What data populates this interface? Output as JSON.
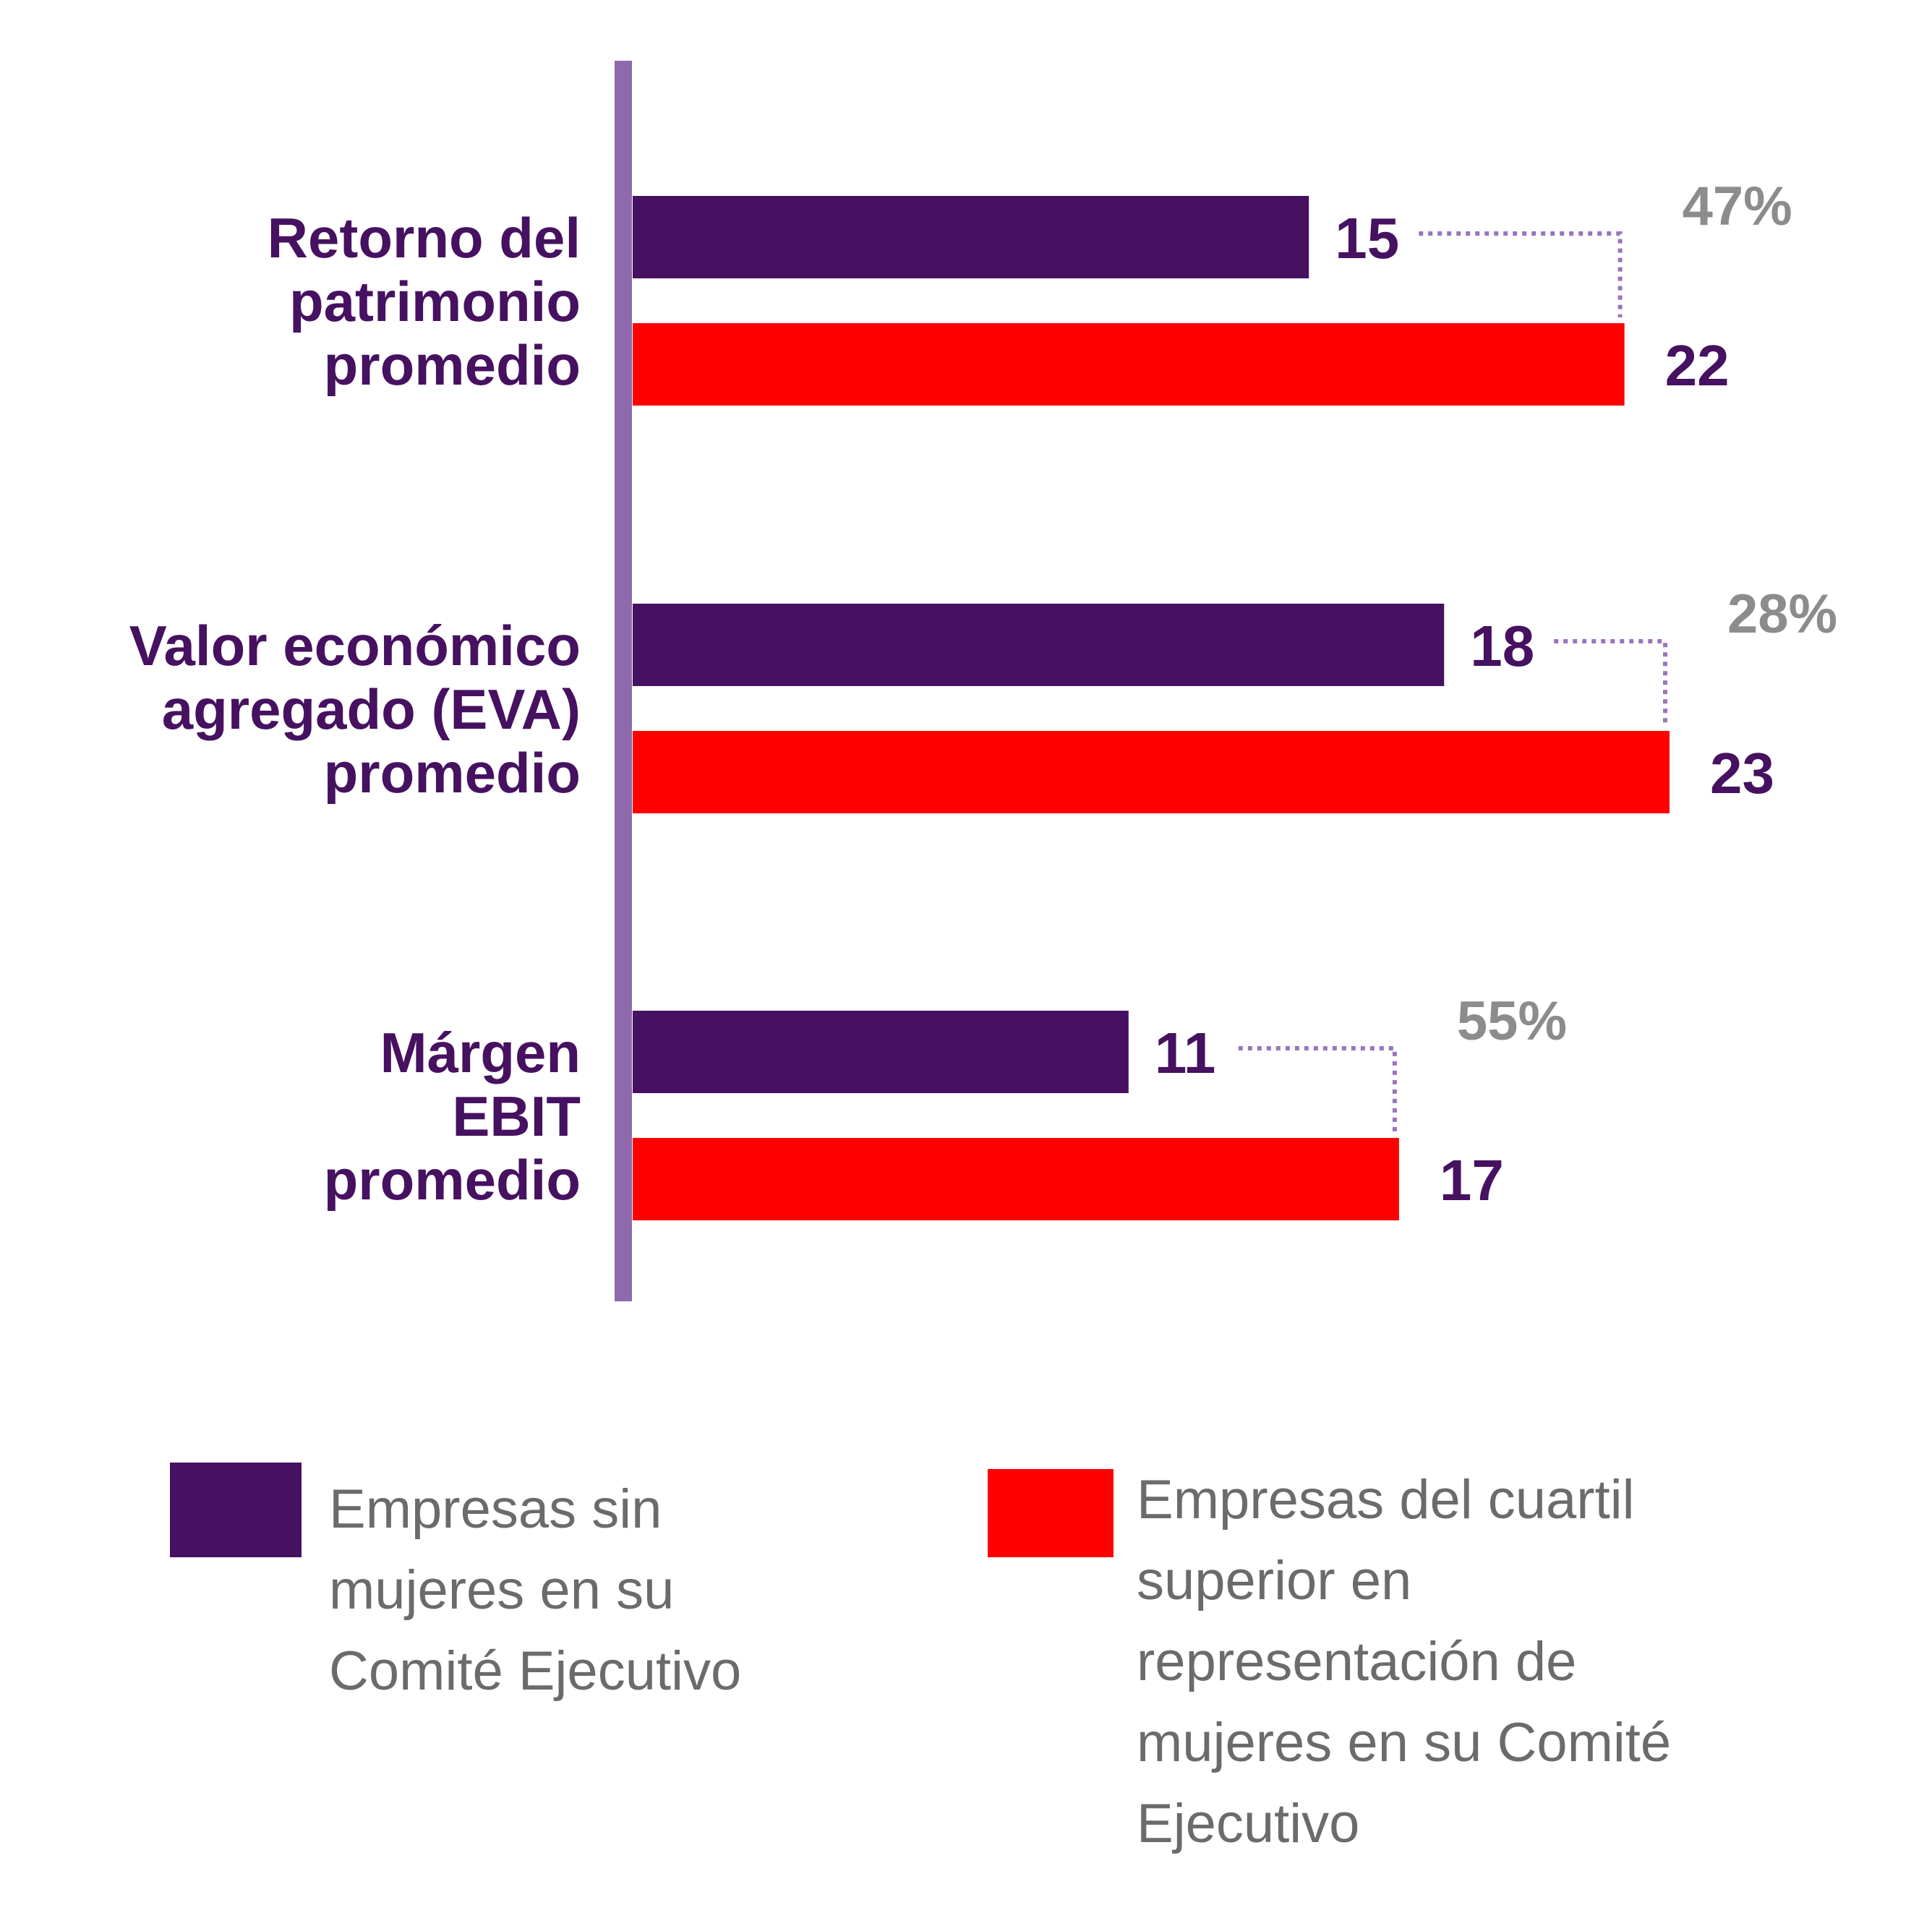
{
  "chart_data": {
    "type": "bar",
    "orientation": "horizontal",
    "categories": [
      [
        "Retorno del",
        "patrimonio",
        "promedio"
      ],
      [
        "Valor económico",
        "agregado (EVA)",
        "promedio"
      ],
      [
        "Márgen",
        "EBIT",
        "promedio"
      ]
    ],
    "series": [
      {
        "name": [
          "Empresas sin",
          "mujeres en su",
          "Comité Ejecutivo"
        ],
        "values": [
          15,
          18,
          11
        ],
        "color": "#461160"
      },
      {
        "name": [
          "Empresas del cuartil",
          "superior en",
          "representación de",
          "mujeres en su Comité",
          "Ejecutivo"
        ],
        "values": [
          22,
          23,
          17
        ],
        "color": "#ff0000"
      }
    ],
    "annotations": [
      {
        "category": 0,
        "text": "47%"
      },
      {
        "category": 1,
        "text": "28%"
      },
      {
        "category": 2,
        "text": "55%"
      }
    ],
    "xlim": [
      0,
      23
    ],
    "grid": false,
    "legend": "bottom",
    "title": "",
    "xlabel": "",
    "ylabel": ""
  },
  "colors": {
    "axis": "#8e6aac",
    "label": "#461160",
    "annotation": "#8c8c8c",
    "connector": "#9b74be",
    "legend_text": "#6b6b6b"
  }
}
